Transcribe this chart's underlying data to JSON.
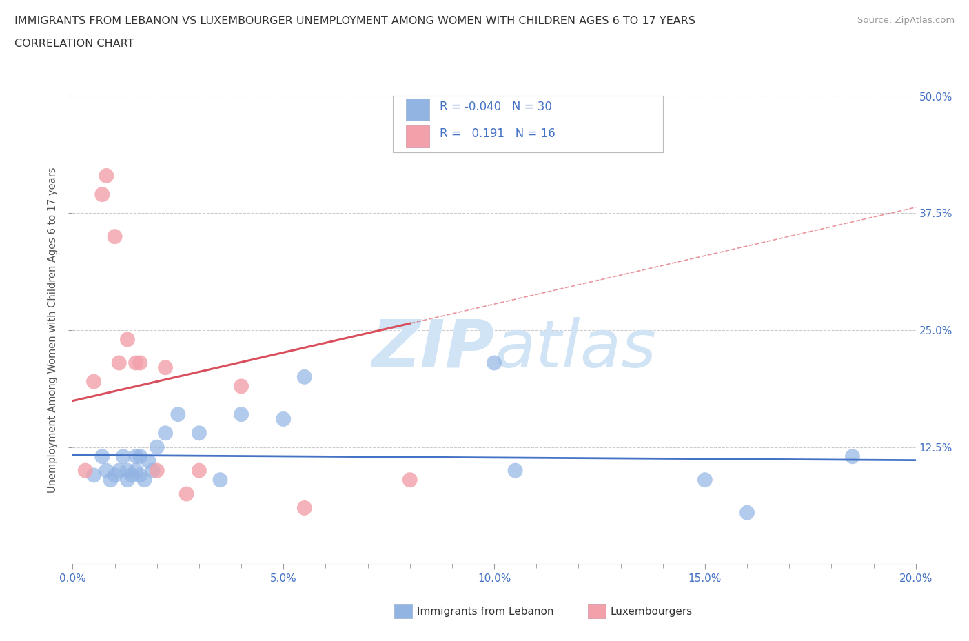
{
  "title": "IMMIGRANTS FROM LEBANON VS LUXEMBOURGER UNEMPLOYMENT AMONG WOMEN WITH CHILDREN AGES 6 TO 17 YEARS",
  "subtitle": "CORRELATION CHART",
  "source": "Source: ZipAtlas.com",
  "ylabel": "Unemployment Among Women with Children Ages 6 to 17 years",
  "xlim": [
    0.0,
    0.2
  ],
  "ylim": [
    0.0,
    0.5
  ],
  "xtick_labels": [
    "0.0%",
    "",
    "",
    "",
    "",
    "5.0%",
    "",
    "",
    "",
    "",
    "10.0%",
    "",
    "",
    "",
    "",
    "15.0%",
    "",
    "",
    "",
    "",
    "20.0%"
  ],
  "xtick_values": [
    0.0,
    0.01,
    0.02,
    0.03,
    0.04,
    0.05,
    0.06,
    0.07,
    0.08,
    0.09,
    0.1,
    0.11,
    0.12,
    0.13,
    0.14,
    0.15,
    0.16,
    0.17,
    0.18,
    0.19,
    0.2
  ],
  "xtick_major_labels": [
    "0.0%",
    "5.0%",
    "10.0%",
    "15.0%",
    "20.0%"
  ],
  "xtick_major_values": [
    0.0,
    0.05,
    0.1,
    0.15,
    0.2
  ],
  "ytick_labels": [
    "12.5%",
    "25.0%",
    "37.5%",
    "50.0%"
  ],
  "ytick_values": [
    0.125,
    0.25,
    0.375,
    0.5
  ],
  "legend_label1": "Immigrants from Lebanon",
  "legend_label2": "Luxembourgers",
  "R1": -0.04,
  "N1": 30,
  "R2": 0.191,
  "N2": 16,
  "color1": "#92B4E3",
  "color2": "#F2A0AA",
  "trendline1_color": "#4472C4",
  "trendline2_color": "#D94F5E",
  "axis_label_color": "#4472C4",
  "watermark_color": "#D0E4F5",
  "scatter1_x": [
    0.005,
    0.007,
    0.008,
    0.009,
    0.01,
    0.011,
    0.012,
    0.013,
    0.013,
    0.014,
    0.015,
    0.015,
    0.016,
    0.016,
    0.017,
    0.018,
    0.019,
    0.02,
    0.022,
    0.025,
    0.03,
    0.035,
    0.04,
    0.05,
    0.055,
    0.1,
    0.105,
    0.15,
    0.16,
    0.185
  ],
  "scatter1_y": [
    0.095,
    0.115,
    0.1,
    0.09,
    0.095,
    0.1,
    0.115,
    0.09,
    0.1,
    0.095,
    0.1,
    0.115,
    0.095,
    0.115,
    0.09,
    0.11,
    0.1,
    0.125,
    0.14,
    0.16,
    0.14,
    0.09,
    0.16,
    0.155,
    0.2,
    0.215,
    0.1,
    0.09,
    0.055,
    0.115
  ],
  "scatter2_x": [
    0.003,
    0.005,
    0.007,
    0.008,
    0.01,
    0.011,
    0.013,
    0.015,
    0.016,
    0.02,
    0.022,
    0.027,
    0.03,
    0.04,
    0.055,
    0.08
  ],
  "scatter2_y": [
    0.1,
    0.195,
    0.395,
    0.415,
    0.35,
    0.215,
    0.24,
    0.215,
    0.215,
    0.1,
    0.21,
    0.075,
    0.1,
    0.19,
    0.06,
    0.09
  ]
}
